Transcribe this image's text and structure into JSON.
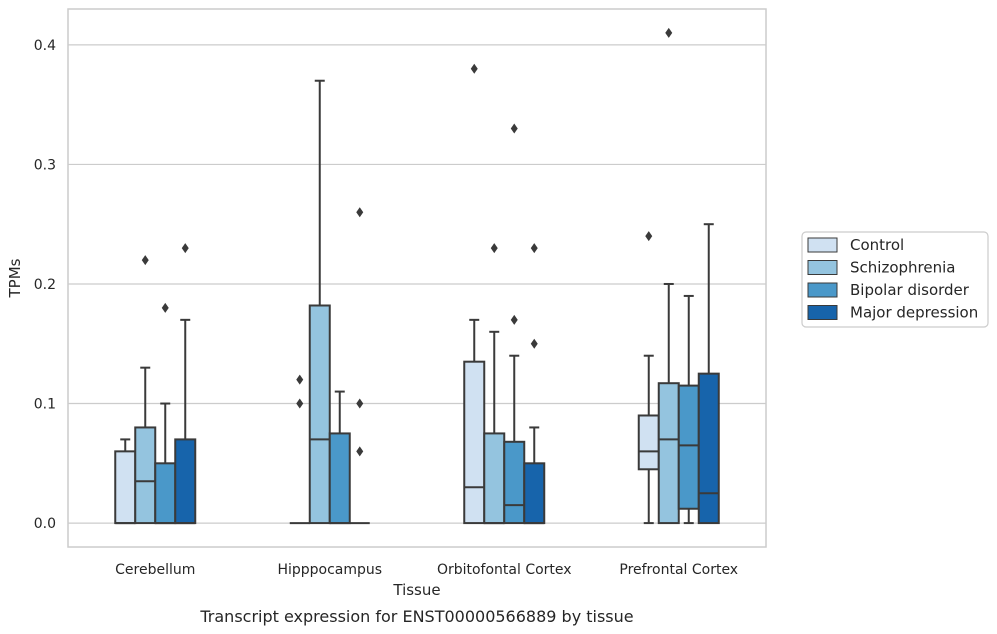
{
  "caption": "Transcript expression for ENST00000566889 by tissue",
  "colors": {
    "Control": "#d0e1f2",
    "Schizophrenia": "#94c4df",
    "Bipolar disorder": "#4a98c9",
    "Major depression": "#1764ab",
    "stroke": "#3a3a3a",
    "grid": "#cccccc"
  },
  "chart_data": {
    "type": "box",
    "xlabel": "Tissue",
    "ylabel": "TPMs",
    "ylim": [
      -0.02,
      0.43
    ],
    "yticks": [
      0.0,
      0.1,
      0.2,
      0.3,
      0.4
    ],
    "ytick_labels": [
      "0.0",
      "0.1",
      "0.2",
      "0.3",
      "0.4"
    ],
    "grid": "horizontal",
    "legend_position": "right",
    "categories": [
      "Cerebellum",
      "Hipppocampus",
      "Orbitofontal Cortex",
      "Prefrontal Cortex"
    ],
    "series": [
      {
        "name": "Control",
        "boxes": [
          {
            "whislo": 0.0,
            "q1": 0.0,
            "med": 0.0,
            "q3": 0.06,
            "whishi": 0.07,
            "fliers": []
          },
          {
            "whislo": 0.0,
            "q1": 0.0,
            "med": 0.0,
            "q3": 0.0,
            "whishi": 0.0,
            "fliers": [
              0.1,
              0.12
            ]
          },
          {
            "whislo": 0.0,
            "q1": 0.0,
            "med": 0.03,
            "q3": 0.135,
            "whishi": 0.17,
            "fliers": [
              0.38
            ]
          },
          {
            "whislo": 0.0,
            "q1": 0.045,
            "med": 0.06,
            "q3": 0.09,
            "whishi": 0.14,
            "fliers": [
              0.24
            ]
          }
        ]
      },
      {
        "name": "Schizophrenia",
        "boxes": [
          {
            "whislo": 0.0,
            "q1": 0.0,
            "med": 0.035,
            "q3": 0.08,
            "whishi": 0.13,
            "fliers": [
              0.22
            ]
          },
          {
            "whislo": 0.0,
            "q1": 0.0,
            "med": 0.07,
            "q3": 0.182,
            "whishi": 0.37,
            "fliers": []
          },
          {
            "whislo": 0.0,
            "q1": 0.0,
            "med": 0.0,
            "q3": 0.075,
            "whishi": 0.16,
            "fliers": [
              0.23
            ]
          },
          {
            "whislo": 0.0,
            "q1": 0.0,
            "med": 0.07,
            "q3": 0.117,
            "whishi": 0.2,
            "fliers": [
              0.41
            ]
          }
        ]
      },
      {
        "name": "Bipolar disorder",
        "boxes": [
          {
            "whislo": 0.0,
            "q1": 0.0,
            "med": 0.0,
            "q3": 0.05,
            "whishi": 0.1,
            "fliers": [
              0.18
            ]
          },
          {
            "whislo": 0.0,
            "q1": 0.0,
            "med": 0.0,
            "q3": 0.075,
            "whishi": 0.11,
            "fliers": []
          },
          {
            "whislo": 0.0,
            "q1": 0.0,
            "med": 0.015,
            "q3": 0.068,
            "whishi": 0.14,
            "fliers": [
              0.17,
              0.33
            ]
          },
          {
            "whislo": 0.0,
            "q1": 0.012,
            "med": 0.065,
            "q3": 0.115,
            "whishi": 0.19,
            "fliers": []
          }
        ]
      },
      {
        "name": "Major depression",
        "boxes": [
          {
            "whislo": 0.0,
            "q1": 0.0,
            "med": 0.0,
            "q3": 0.07,
            "whishi": 0.17,
            "fliers": [
              0.23
            ]
          },
          {
            "whislo": 0.0,
            "q1": 0.0,
            "med": 0.0,
            "q3": 0.0,
            "whishi": 0.0,
            "fliers": [
              0.06,
              0.1,
              0.26
            ]
          },
          {
            "whislo": 0.0,
            "q1": 0.0,
            "med": 0.0,
            "q3": 0.05,
            "whishi": 0.08,
            "fliers": [
              0.15,
              0.23
            ]
          },
          {
            "whislo": 0.0,
            "q1": 0.0,
            "med": 0.025,
            "q3": 0.125,
            "whishi": 0.25,
            "fliers": []
          }
        ]
      }
    ]
  }
}
